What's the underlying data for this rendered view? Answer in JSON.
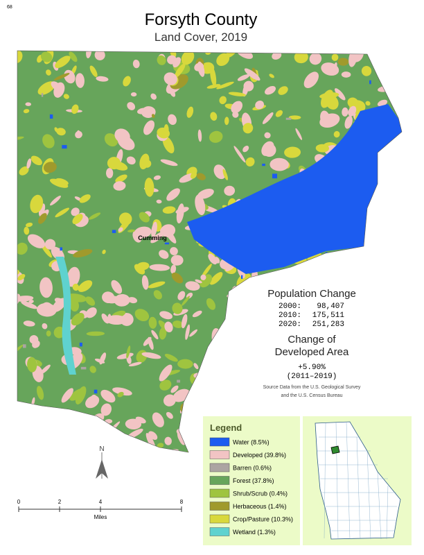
{
  "page_number": "68",
  "header": {
    "title": "Forsyth County",
    "subtitle": "Land Cover, 2019"
  },
  "map": {
    "place_label": "Cumming"
  },
  "population": {
    "heading": "Population Change",
    "rows": [
      {
        "year": "2000:",
        "value": "98,407"
      },
      {
        "year": "2010:",
        "value": "175,511"
      },
      {
        "year": "2020:",
        "value": "251,283"
      }
    ]
  },
  "developed_change": {
    "heading_lines": [
      "Change of",
      "Developed Area"
    ],
    "value": "+5.90%",
    "period": "(2011–2019)"
  },
  "source_lines": [
    "Source Data from the U.S. Geological Survey",
    "and the U.S. Census Bureau"
  ],
  "legend": {
    "title": "Legend",
    "items": [
      {
        "label": "Water (8.5%)",
        "color": "#1c5cf0"
      },
      {
        "label": "Developed (39.8%)",
        "color": "#f2c4c4"
      },
      {
        "label": "Barren (0.6%)",
        "color": "#aca5a2"
      },
      {
        "label": "Forest (37.8%)",
        "color": "#67a55b"
      },
      {
        "label": "Shrub/Scrub (0.4%)",
        "color": "#9fc43f"
      },
      {
        "label": "Herbaceous (1.4%)",
        "color": "#a09a2c"
      },
      {
        "label": "Crop/Pasture (10.3%)",
        "color": "#d8d83c"
      },
      {
        "label": "Wetland (1.3%)",
        "color": "#5fd2cf"
      }
    ]
  },
  "north_label": "N",
  "scale": {
    "labels": [
      "0",
      "2",
      "4",
      "8"
    ],
    "unit": "Miles"
  }
}
